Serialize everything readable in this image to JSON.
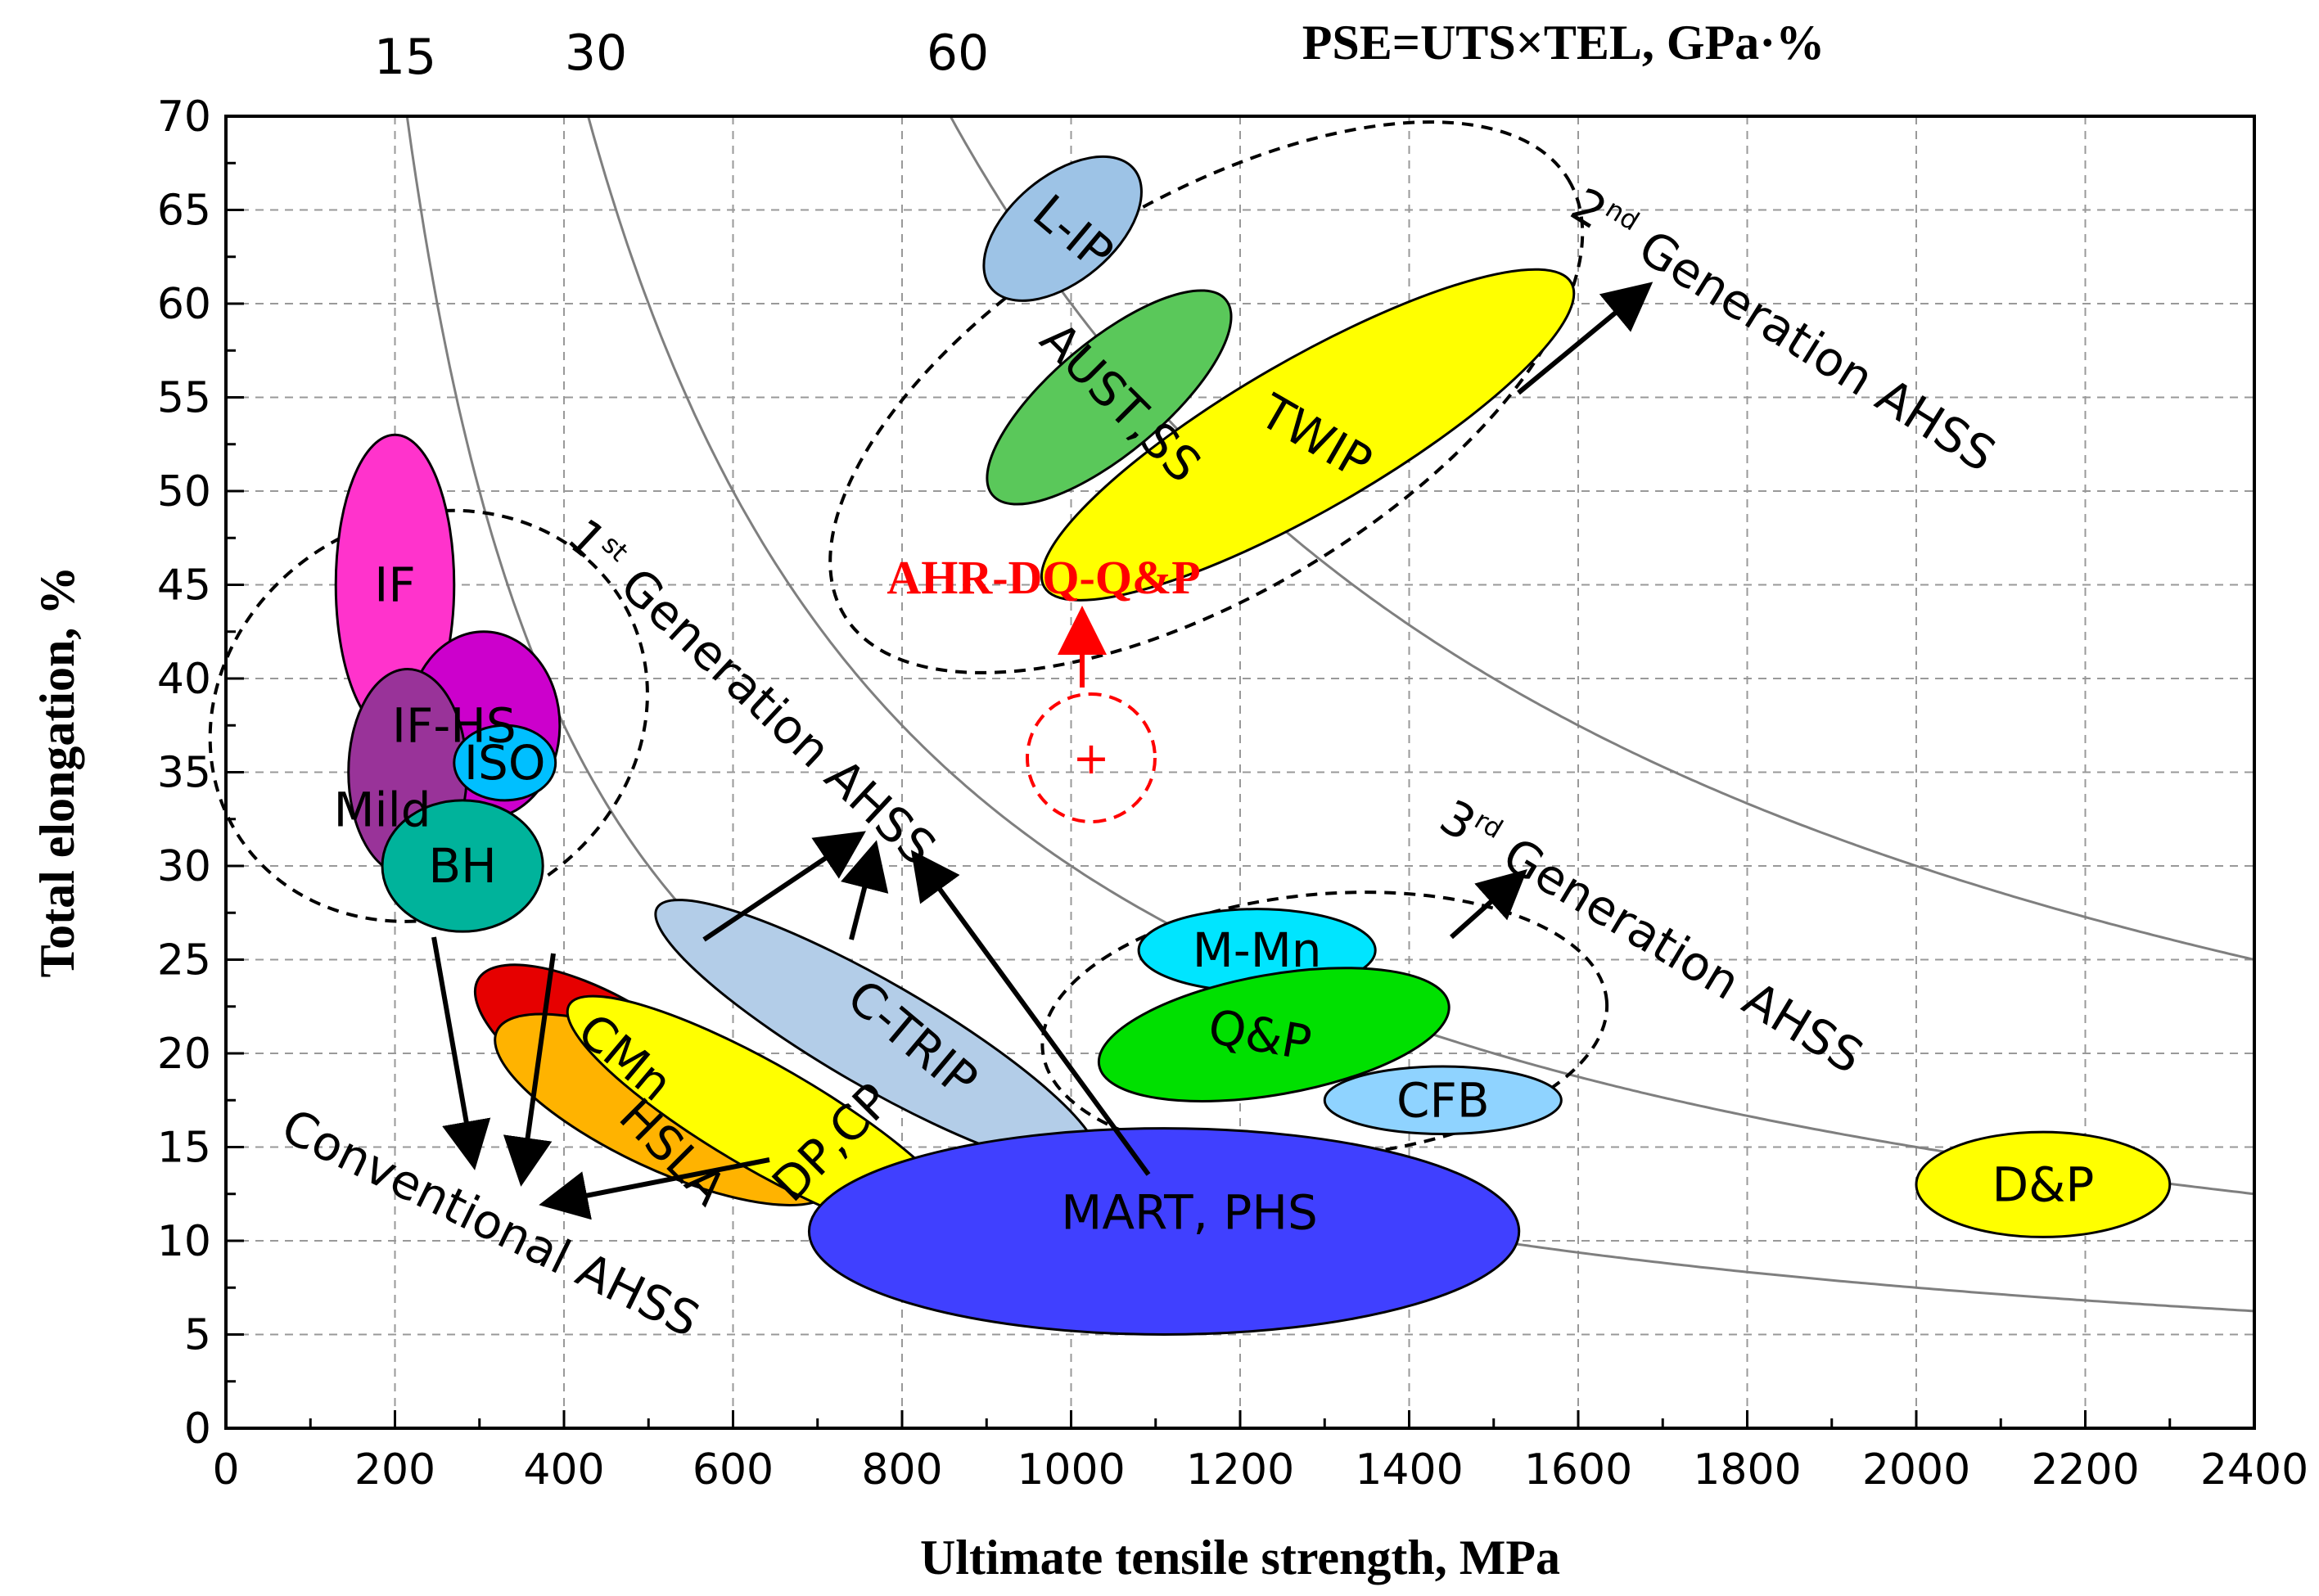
{
  "chart_data": {
    "type": "scatter",
    "title": "PSE=UTS×TEL, GPa·%",
    "xlabel": "Ultimate tensile strength, MPa",
    "ylabel": "Total elongation, %",
    "xlim": [
      0,
      2400
    ],
    "ylim": [
      0,
      70
    ],
    "xticks": [
      0,
      200,
      400,
      600,
      800,
      1000,
      1200,
      1400,
      1600,
      1800,
      2000,
      2200,
      2400
    ],
    "yticks": [
      0,
      5,
      10,
      15,
      20,
      25,
      30,
      35,
      40,
      45,
      50,
      55,
      60,
      65,
      70
    ],
    "grid": true,
    "pse_curves": [
      {
        "label": "15",
        "value": 15
      },
      {
        "label": "30",
        "value": 30
      },
      {
        "label": "60",
        "value": 60
      }
    ],
    "steel_regions": [
      {
        "name": "IF",
        "cx": 200,
        "cy": 45,
        "rx": 70,
        "ry": 8,
        "angle": 0,
        "color": "#ff33cc"
      },
      {
        "name": "IF-HS",
        "cx": 305,
        "cy": 37.5,
        "rx": 90,
        "ry": 5,
        "angle": 0,
        "color": "#cc00cc"
      },
      {
        "name": "Mild",
        "cx": 215,
        "cy": 35,
        "rx": 70,
        "ry": 5.5,
        "angle": 0,
        "color": "#993399"
      },
      {
        "name": "ISO",
        "cx": 330,
        "cy": 35.5,
        "rx": 60,
        "ry": 2,
        "angle": 0,
        "color": "#00bfff"
      },
      {
        "name": "BH",
        "cx": 280,
        "cy": 30,
        "rx": 95,
        "ry": 3.5,
        "angle": 0,
        "color": "#00b39b"
      },
      {
        "name": "CMn",
        "cx": 450,
        "cy": 20,
        "rx": 175,
        "ry": 3,
        "angle": 30,
        "color": "#e60000"
      },
      {
        "name": "HSLA",
        "cx": 520,
        "cy": 17,
        "rx": 220,
        "ry": 3.2,
        "angle": 25,
        "color": "#ffb300"
      },
      {
        "name": "DP,CP",
        "cx": 640,
        "cy": 16.5,
        "rx": 270,
        "ry": 2.8,
        "angle": 30,
        "color": "#ffff00"
      },
      {
        "name": "C-TRIP",
        "cx": 770,
        "cy": 21,
        "rx": 300,
        "ry": 2.8,
        "angle": 30,
        "color": "#b3cde8"
      },
      {
        "name": "MART, PHS",
        "cx": 1110,
        "cy": 10.5,
        "rx": 420,
        "ry": 5.5,
        "angle": 0,
        "color": "#4040ff"
      },
      {
        "name": "L-IP",
        "cx": 990,
        "cy": 64,
        "rx": 110,
        "ry": 2.8,
        "angle": -40,
        "color": "#9dc3e6"
      },
      {
        "name": "AUST,SS",
        "cx": 1045,
        "cy": 55,
        "rx": 180,
        "ry": 3,
        "angle": -40,
        "color": "#5ac85a"
      },
      {
        "name": "TWIP",
        "cx": 1280,
        "cy": 53,
        "rx": 360,
        "ry": 4,
        "angle": -30,
        "color": "#ffff00"
      },
      {
        "name": "M-Mn",
        "cx": 1220,
        "cy": 25.5,
        "rx": 140,
        "ry": 2.2,
        "angle": 0,
        "color": "#00e5ff"
      },
      {
        "name": "Q&P",
        "cx": 1240,
        "cy": 21,
        "rx": 210,
        "ry": 3.2,
        "angle": -10,
        "color": "#00e000"
      },
      {
        "name": "CFB",
        "cx": 1440,
        "cy": 17.5,
        "rx": 140,
        "ry": 1.8,
        "angle": 0,
        "color": "#8fd3ff"
      },
      {
        "name": "D&P",
        "cx": 2150,
        "cy": 13,
        "rx": 150,
        "ry": 2.8,
        "angle": 0,
        "color": "#ffff00"
      }
    ],
    "group_labels": [
      {
        "text": "Conventional AHSS"
      },
      {
        "text": "1st Generation AHSS",
        "main": "Generation AHSS",
        "sup": "st",
        "num": "1"
      },
      {
        "text": "2nd Generation AHSS",
        "main": "Generation AHSS",
        "sup": "nd",
        "num": "2"
      },
      {
        "text": "3rd Generation AHSS",
        "main": "Generation AHSS",
        "sup": "rd",
        "num": "3"
      }
    ],
    "target": {
      "label": "AHR-DQ-Q&P",
      "x": 1025,
      "y": 36,
      "color": "#ff0000"
    }
  }
}
